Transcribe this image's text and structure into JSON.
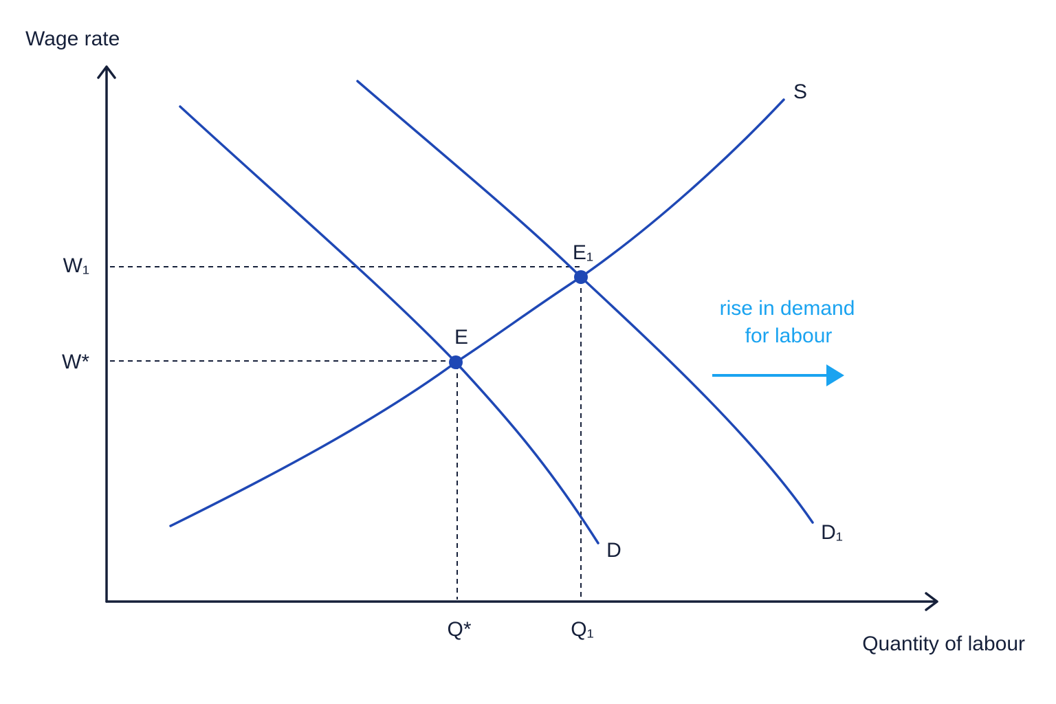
{
  "axis_titles": {
    "y": "Wage rate",
    "x": "Quantity of labour"
  },
  "wage_levels": [
    "W₁",
    "W*"
  ],
  "quantity_levels": [
    "Q*",
    "Q₁"
  ],
  "points": [
    "E",
    "E₁"
  ],
  "curves": [
    "S",
    "D",
    "D₁"
  ],
  "annotation": [
    "rise in demand",
    "for labour"
  ]
}
